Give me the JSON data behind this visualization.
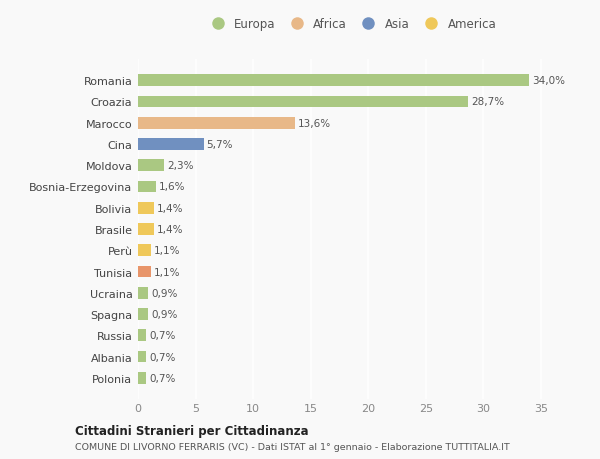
{
  "categories": [
    "Polonia",
    "Albania",
    "Russia",
    "Spagna",
    "Ucraina",
    "Tunisia",
    "Perù",
    "Brasile",
    "Bolivia",
    "Bosnia-Erzegovina",
    "Moldova",
    "Cina",
    "Marocco",
    "Croazia",
    "Romania"
  ],
  "values": [
    0.7,
    0.7,
    0.7,
    0.9,
    0.9,
    1.1,
    1.1,
    1.4,
    1.4,
    1.6,
    2.3,
    5.7,
    13.6,
    28.7,
    34.0
  ],
  "colors": [
    "#aac882",
    "#aac882",
    "#aac882",
    "#aac882",
    "#aac882",
    "#e8956a",
    "#efc85a",
    "#efc85a",
    "#efc85a",
    "#aac882",
    "#aac882",
    "#7090c0",
    "#e8b888",
    "#aac882",
    "#aac882"
  ],
  "labels": [
    "0,7%",
    "0,7%",
    "0,7%",
    "0,9%",
    "0,9%",
    "1,1%",
    "1,1%",
    "1,4%",
    "1,4%",
    "1,6%",
    "2,3%",
    "5,7%",
    "13,6%",
    "28,7%",
    "34,0%"
  ],
  "legend_labels": [
    "Europa",
    "Africa",
    "Asia",
    "America"
  ],
  "legend_colors": [
    "#aac882",
    "#e8b888",
    "#7090c0",
    "#efc85a"
  ],
  "title1": "Cittadini Stranieri per Cittadinanza",
  "title2": "COMUNE DI LIVORNO FERRARIS (VC) - Dati ISTAT al 1° gennaio - Elaborazione TUTTITALIA.IT",
  "xlim": [
    0,
    37
  ],
  "xticks": [
    0,
    5,
    10,
    15,
    20,
    25,
    30,
    35
  ],
  "background_color": "#f9f9f9",
  "grid_color": "#ffffff"
}
